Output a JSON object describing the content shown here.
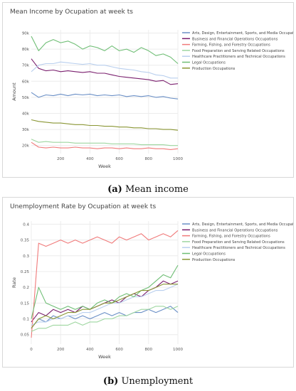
{
  "colors": {
    "arts": "#6a8fc6",
    "business": "#7a1f6e",
    "farming": "#f07a7a",
    "food": "#9ed6a0",
    "health": "#b9cfee",
    "legal": "#6fbe75",
    "production": "#8a9634"
  },
  "captions": [
    {
      "label": "(a)",
      "text": " Mean income"
    },
    {
      "label": "(b)",
      "text": " Unemployment"
    }
  ],
  "chart_data": [
    {
      "type": "line",
      "title": "Mean Income by Ocupation at week ts",
      "xlabel": "Week",
      "ylabel": "Amount",
      "xlim": [
        0,
        1000
      ],
      "ylim": [
        15000,
        92000
      ],
      "xticks": [
        200,
        400,
        600,
        800,
        1000
      ],
      "xtick_labels": [
        "200",
        "400",
        "600",
        "800",
        "1000"
      ],
      "yticks": [
        20000,
        30000,
        40000,
        50000,
        60000,
        70000,
        80000,
        90000
      ],
      "ytick_labels": [
        "20k",
        "30k",
        "40k",
        "50k",
        "60k",
        "70k",
        "80k",
        "90k"
      ],
      "grid": true,
      "legend_position": "top-right",
      "x": [
        0,
        50,
        100,
        150,
        200,
        250,
        300,
        350,
        400,
        450,
        500,
        550,
        600,
        650,
        700,
        750,
        800,
        850,
        900,
        950,
        1000
      ],
      "series": [
        {
          "name": "Arts, Design, Entertainment, Sports, and Media Occupations",
          "color_key": "arts",
          "values": [
            53000,
            50000,
            51500,
            51000,
            52000,
            51000,
            52000,
            51500,
            52000,
            51000,
            51500,
            51000,
            51500,
            50500,
            51000,
            50500,
            51000,
            50000,
            50500,
            49500,
            49000
          ]
        },
        {
          "name": "Business and Financial Operations Occupations",
          "color_key": "business",
          "values": [
            74000,
            68000,
            66500,
            67000,
            66000,
            66500,
            66000,
            65500,
            66000,
            65000,
            65000,
            64000,
            63000,
            62500,
            62000,
            61500,
            61000,
            60000,
            60500,
            58000,
            58500
          ]
        },
        {
          "name": "Farming, Fishing, and Forestry Occupations",
          "color_key": "farming",
          "values": [
            22000,
            19000,
            18500,
            19000,
            18500,
            18500,
            19000,
            18500,
            18500,
            18000,
            18500,
            18500,
            18000,
            18500,
            18000,
            18000,
            18500,
            18000,
            18000,
            17500,
            18000
          ]
        },
        {
          "name": "Food Preparation and Serving Related Occupations",
          "color_key": "food",
          "values": [
            24000,
            22000,
            22500,
            22000,
            22000,
            22000,
            21500,
            21500,
            21500,
            21500,
            21500,
            21000,
            21000,
            21000,
            21000,
            20500,
            20500,
            20500,
            20500,
            20000,
            20000
          ]
        },
        {
          "name": "Healthcare Practitioners and Technical Occupations",
          "color_key": "health",
          "values": [
            66000,
            70000,
            71000,
            71000,
            72000,
            71500,
            71000,
            70500,
            71000,
            70000,
            70000,
            69000,
            68000,
            67500,
            67000,
            66000,
            65500,
            64000,
            63500,
            62000,
            62000
          ]
        },
        {
          "name": "Legal Occupations",
          "color_key": "legal",
          "values": [
            88000,
            79000,
            84000,
            86000,
            84000,
            85000,
            83000,
            80000,
            82000,
            81000,
            79000,
            82000,
            79000,
            80000,
            78000,
            81000,
            79000,
            76000,
            77000,
            75000,
            71000
          ]
        },
        {
          "name": "Production Occupations",
          "color_key": "production",
          "values": [
            36000,
            35000,
            34500,
            34000,
            34000,
            33500,
            33000,
            33000,
            32500,
            32500,
            32000,
            32000,
            31500,
            31500,
            31000,
            31000,
            30500,
            30500,
            30000,
            30000,
            29500
          ]
        }
      ]
    },
    {
      "type": "line",
      "title": "Unemployment Rate by Ocupation at week ts",
      "xlabel": "Week",
      "ylabel": "Rate",
      "xlim": [
        0,
        1000
      ],
      "ylim": [
        0.02,
        0.41
      ],
      "xticks": [
        0,
        200,
        400,
        600,
        800,
        1000
      ],
      "xtick_labels": [
        "0",
        "200",
        "400",
        "600",
        "800",
        "1000"
      ],
      "yticks": [
        0.05,
        0.1,
        0.15,
        0.2,
        0.25,
        0.3,
        0.35,
        0.4
      ],
      "ytick_labels": [
        "0.05",
        "0.1",
        "0.15",
        "0.2",
        "0.25",
        "0.3",
        "0.35",
        "0.4"
      ],
      "grid": true,
      "legend_position": "top-right",
      "x": [
        0,
        50,
        100,
        150,
        200,
        250,
        300,
        350,
        400,
        450,
        500,
        550,
        600,
        650,
        700,
        750,
        800,
        850,
        900,
        950,
        1000
      ],
      "series": [
        {
          "name": "Arts, Design, Entertainment, Sports, and Media Occupations",
          "color_key": "arts",
          "values": [
            0.07,
            0.1,
            0.09,
            0.11,
            0.1,
            0.11,
            0.1,
            0.11,
            0.1,
            0.11,
            0.12,
            0.11,
            0.12,
            0.11,
            0.12,
            0.12,
            0.13,
            0.12,
            0.13,
            0.14,
            0.12
          ]
        },
        {
          "name": "Business and Financial Operations Occupations",
          "color_key": "business",
          "values": [
            0.09,
            0.12,
            0.11,
            0.13,
            0.12,
            0.13,
            0.12,
            0.14,
            0.13,
            0.14,
            0.15,
            0.16,
            0.15,
            0.17,
            0.18,
            0.17,
            0.19,
            0.2,
            0.22,
            0.21,
            0.22
          ]
        },
        {
          "name": "Farming, Fishing, and Forestry Occupations",
          "color_key": "farming",
          "values": [
            0.04,
            0.34,
            0.33,
            0.34,
            0.35,
            0.34,
            0.35,
            0.34,
            0.35,
            0.36,
            0.35,
            0.34,
            0.36,
            0.35,
            0.36,
            0.37,
            0.35,
            0.36,
            0.37,
            0.36,
            0.38
          ]
        },
        {
          "name": "Food Preparation and Serving Related Occupations",
          "color_key": "food",
          "values": [
            0.06,
            0.07,
            0.07,
            0.08,
            0.08,
            0.08,
            0.09,
            0.08,
            0.09,
            0.09,
            0.1,
            0.1,
            0.11,
            0.11,
            0.12,
            0.13,
            0.13,
            0.14,
            0.14,
            0.13,
            0.14
          ]
        },
        {
          "name": "Healthcare Practitioners and Technical Occupations",
          "color_key": "health",
          "values": [
            0.08,
            0.09,
            0.09,
            0.1,
            0.1,
            0.11,
            0.11,
            0.12,
            0.12,
            0.13,
            0.14,
            0.15,
            0.15,
            0.16,
            0.17,
            0.17,
            0.18,
            0.19,
            0.19,
            0.2,
            0.21
          ]
        },
        {
          "name": "Legal Occupations",
          "color_key": "legal",
          "values": [
            0.1,
            0.2,
            0.15,
            0.14,
            0.13,
            0.14,
            0.13,
            0.14,
            0.13,
            0.15,
            0.16,
            0.15,
            0.17,
            0.18,
            0.17,
            0.19,
            0.2,
            0.22,
            0.24,
            0.23,
            0.27
          ]
        },
        {
          "name": "Production Occupations",
          "color_key": "production",
          "values": [
            0.07,
            0.1,
            0.11,
            0.1,
            0.11,
            0.12,
            0.12,
            0.13,
            0.13,
            0.14,
            0.15,
            0.15,
            0.16,
            0.17,
            0.18,
            0.19,
            0.19,
            0.2,
            0.21,
            0.21,
            0.21
          ]
        }
      ]
    }
  ]
}
